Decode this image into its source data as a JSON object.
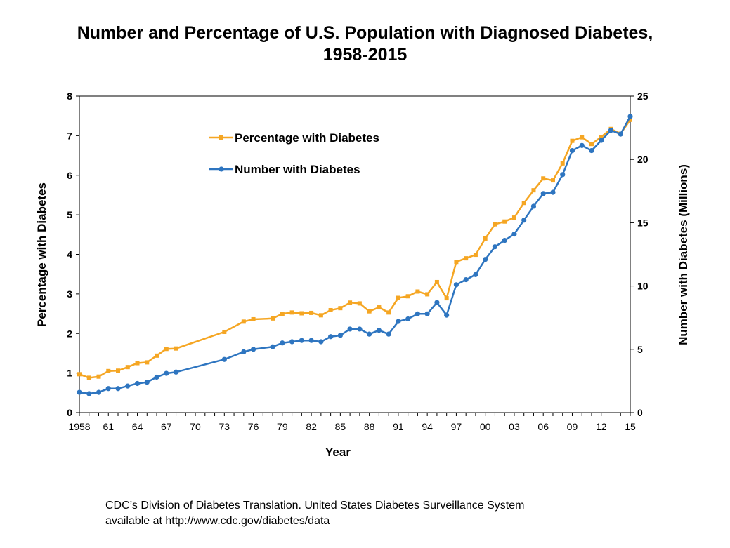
{
  "title_line1": "Number and Percentage of U.S. Population with Diagnosed Diabetes,",
  "title_line2": "1958-2015",
  "source_line1": "CDC’s Division of Diabetes Translation. United States Diabetes Surveillance System",
  "source_line2": "available at http://www.cdc.gov/diabetes/data",
  "colors": {
    "percentage": "#F5A623",
    "number": "#2E75C0"
  },
  "chart_data": {
    "type": "line",
    "title": "Number and Percentage of U.S. Population with Diagnosed Diabetes, 1958-2015",
    "xlabel": "Year",
    "ylabel": "Percentage with Diabetes",
    "y2label": "Number with Diabetes (Millions)",
    "xlim": [
      1958,
      2015
    ],
    "ylim": [
      0,
      8
    ],
    "y2lim": [
      0,
      25
    ],
    "yticks": [
      0,
      1,
      2,
      3,
      4,
      5,
      6,
      7,
      8
    ],
    "y2ticks": [
      0,
      5,
      10,
      15,
      20,
      25
    ],
    "xticks": [
      {
        "year": 1958,
        "label": "1958"
      },
      {
        "year": 1961,
        "label": "61"
      },
      {
        "year": 1964,
        "label": "64"
      },
      {
        "year": 1967,
        "label": "67"
      },
      {
        "year": 1970,
        "label": "70"
      },
      {
        "year": 1973,
        "label": "73"
      },
      {
        "year": 1976,
        "label": "76"
      },
      {
        "year": 1979,
        "label": "79"
      },
      {
        "year": 1982,
        "label": "82"
      },
      {
        "year": 1985,
        "label": "85"
      },
      {
        "year": 1988,
        "label": "88"
      },
      {
        "year": 1991,
        "label": "91"
      },
      {
        "year": 1994,
        "label": "94"
      },
      {
        "year": 1997,
        "label": "97"
      },
      {
        "year": 2000,
        "label": "00"
      },
      {
        "year": 2003,
        "label": "03"
      },
      {
        "year": 2006,
        "label": "06"
      },
      {
        "year": 2009,
        "label": "09"
      },
      {
        "year": 2012,
        "label": "12"
      },
      {
        "year": 2015,
        "label": "15"
      }
    ],
    "legend_position": "upper-left inside plot",
    "grid": false,
    "series": [
      {
        "name": "Percentage with Diabetes",
        "axis": "left",
        "color": "#F5A623",
        "marker": "square",
        "x": [
          1958,
          1959,
          1960,
          1961,
          1962,
          1963,
          1964,
          1965,
          1966,
          1967,
          1968,
          1973,
          1975,
          1976,
          1978,
          1979,
          1980,
          1981,
          1982,
          1983,
          1984,
          1985,
          1986,
          1987,
          1988,
          1989,
          1990,
          1991,
          1992,
          1993,
          1994,
          1995,
          1996,
          1997,
          1998,
          1999,
          2000,
          2001,
          2002,
          2003,
          2004,
          2005,
          2006,
          2007,
          2008,
          2009,
          2010,
          2011,
          2012,
          2013,
          2014,
          2015
        ],
        "y": [
          0.97,
          0.88,
          0.91,
          1.05,
          1.06,
          1.15,
          1.25,
          1.27,
          1.44,
          1.61,
          1.62,
          2.04,
          2.3,
          2.36,
          2.38,
          2.5,
          2.53,
          2.51,
          2.52,
          2.46,
          2.59,
          2.64,
          2.78,
          2.76,
          2.56,
          2.66,
          2.53,
          2.9,
          2.94,
          3.06,
          2.99,
          3.3,
          2.89,
          3.81,
          3.9,
          3.99,
          4.4,
          4.76,
          4.83,
          4.93,
          5.3,
          5.62,
          5.92,
          5.87,
          6.3,
          6.87,
          6.96,
          6.79,
          6.97,
          7.17,
          7.05,
          7.4
        ]
      },
      {
        "name": "Number with Diabetes",
        "axis": "right",
        "color": "#2E75C0",
        "marker": "circle",
        "x": [
          1958,
          1959,
          1960,
          1961,
          1962,
          1963,
          1964,
          1965,
          1966,
          1967,
          1968,
          1973,
          1975,
          1976,
          1978,
          1979,
          1980,
          1981,
          1982,
          1983,
          1984,
          1985,
          1986,
          1987,
          1988,
          1989,
          1990,
          1991,
          1992,
          1993,
          1994,
          1995,
          1996,
          1997,
          1998,
          1999,
          2000,
          2001,
          2002,
          2003,
          2004,
          2005,
          2006,
          2007,
          2008,
          2009,
          2010,
          2011,
          2012,
          2013,
          2014,
          2015
        ],
        "y": [
          1.6,
          1.5,
          1.6,
          1.9,
          1.9,
          2.1,
          2.3,
          2.4,
          2.8,
          3.1,
          3.2,
          4.2,
          4.8,
          5.0,
          5.2,
          5.5,
          5.6,
          5.7,
          5.7,
          5.6,
          6.0,
          6.1,
          6.6,
          6.6,
          6.2,
          6.5,
          6.2,
          7.2,
          7.4,
          7.8,
          7.8,
          8.7,
          7.7,
          10.1,
          10.5,
          10.9,
          12.1,
          13.1,
          13.6,
          14.1,
          15.2,
          16.3,
          17.3,
          17.4,
          18.8,
          20.7,
          21.1,
          20.7,
          21.5,
          22.3,
          22.0,
          23.4
        ]
      }
    ]
  }
}
